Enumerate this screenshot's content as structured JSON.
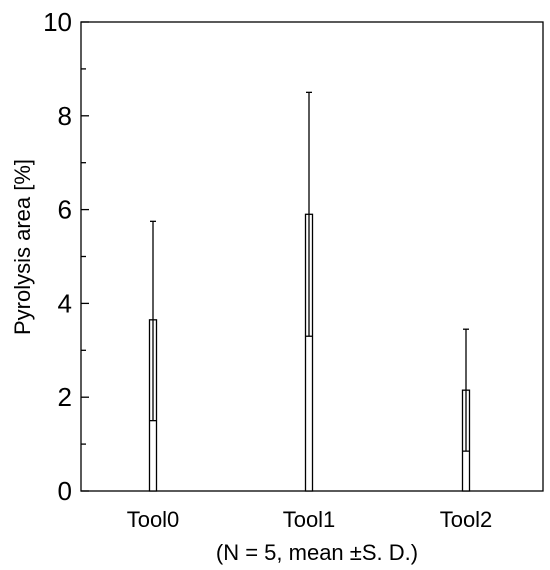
{
  "chart_data": {
    "type": "bar",
    "categories": [
      "Tool0",
      "Tool1",
      "Tool2"
    ],
    "values": [
      3.65,
      5.9,
      2.15
    ],
    "error_upper": [
      5.75,
      8.5,
      3.45
    ],
    "error_lower": [
      1.5,
      3.3,
      0.85
    ],
    "ylabel": "Pyrolysis area [%]",
    "xlabel": "(N = 5, mean ±S. D.)",
    "ylim": [
      0,
      10
    ],
    "yticks": [
      0,
      2,
      4,
      6,
      8,
      10
    ],
    "ytick_labels": [
      "0",
      "2",
      "4",
      "6",
      "8",
      "10"
    ],
    "grid": false,
    "colors": {
      "bar_fill": "#ffffff",
      "stroke": "#000000"
    }
  }
}
